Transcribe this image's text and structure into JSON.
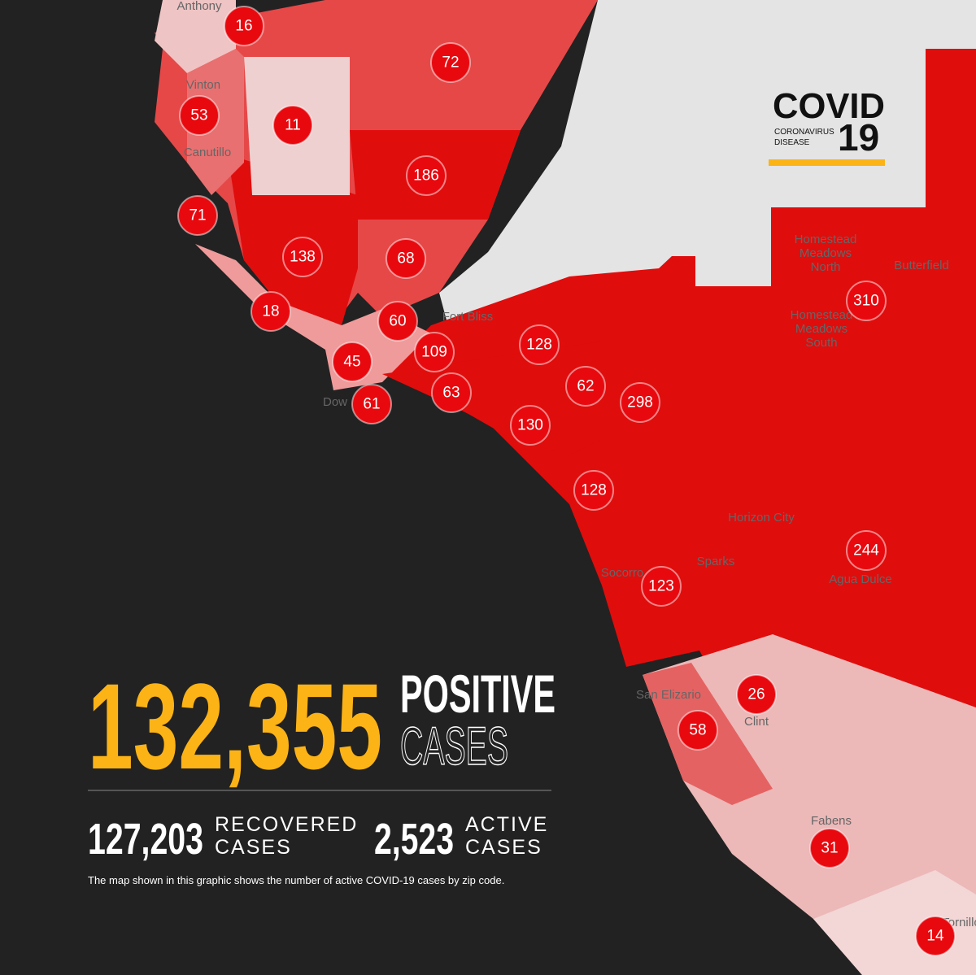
{
  "logo": {
    "title": "COVID",
    "subtitle_lines": [
      "CORONAVIRUS",
      "DISEASE"
    ],
    "number": "19"
  },
  "places": [
    {
      "lines": [
        "Anthony"
      ]
    },
    {
      "lines": [
        "Vinton"
      ]
    },
    {
      "lines": [
        "Canutillo"
      ]
    },
    {
      "lines": [
        "Fort Bliss"
      ]
    },
    {
      "lines": [
        "Homestead",
        "Meadows",
        "North"
      ]
    },
    {
      "lines": [
        "Butterfield"
      ]
    },
    {
      "lines": [
        "Homestead",
        "Meadows",
        "South"
      ]
    },
    {
      "lines": [
        "Dow"
      ]
    },
    {
      "lines": [
        "Horizon City"
      ]
    },
    {
      "lines": [
        "Sparks"
      ]
    },
    {
      "lines": [
        "Socorro"
      ]
    },
    {
      "lines": [
        "Agua Dulce"
      ]
    },
    {
      "lines": [
        "San Elizario"
      ]
    },
    {
      "lines": [
        "Clint"
      ]
    },
    {
      "lines": [
        "Fabens"
      ]
    },
    {
      "lines": [
        "Tornillo"
      ]
    }
  ],
  "zip_counts": [
    16,
    72,
    53,
    11,
    186,
    71,
    138,
    68,
    18,
    60,
    109,
    128,
    45,
    61,
    63,
    62,
    298,
    130,
    128,
    123,
    310,
    244,
    26,
    58,
    31,
    14
  ],
  "stats": {
    "positive": {
      "value": "132,355",
      "label_lines": [
        "POSITIVE",
        "CASES"
      ]
    },
    "recovered": {
      "value": "127,203",
      "label_lines": [
        "RECOVERED",
        "CASES"
      ]
    },
    "active": {
      "value": "2,523",
      "label_lines": [
        "ACTIVE",
        "CASES"
      ]
    },
    "footnote": "The map shown in this graphic shows the number of active COVID-19 cases by zip code."
  }
}
